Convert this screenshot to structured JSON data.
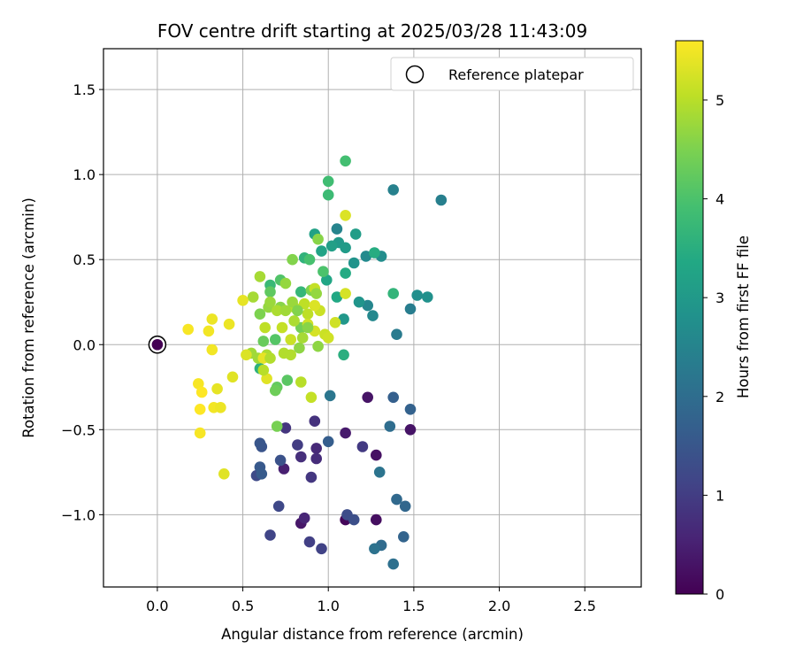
{
  "chart_data": {
    "type": "scatter",
    "title": "FOV centre drift starting at 2025/03/28 11:43:09",
    "xlabel": "Angular distance from reference (arcmin)",
    "ylabel": "Rotation from reference (arcmin)",
    "xlim": [
      -0.315,
      2.83
    ],
    "ylim": [
      -1.425,
      1.74
    ],
    "xticks": [
      0.0,
      0.5,
      1.0,
      1.5,
      2.0,
      2.5
    ],
    "xtick_labels": [
      "0.0",
      "0.5",
      "1.0",
      "1.5",
      "2.0",
      "2.5"
    ],
    "yticks": [
      -1.0,
      -0.5,
      0.0,
      0.5,
      1.0,
      1.5
    ],
    "ytick_labels": [
      "−1.0",
      "−0.5",
      "0.0",
      "0.5",
      "1.0",
      "1.5"
    ],
    "grid": true,
    "legend": {
      "position": "top-right",
      "entries": [
        "Reference platepar"
      ]
    },
    "reference_point": {
      "x": 0.0,
      "y": 0.0
    },
    "colorbar": {
      "label": "Hours from first FF file",
      "colormap": "viridis",
      "range": [
        0,
        5.6
      ],
      "ticks": [
        0,
        1,
        2,
        3,
        4,
        5
      ],
      "tick_labels": [
        "0",
        "1",
        "2",
        "3",
        "4",
        "5"
      ]
    },
    "series": [
      {
        "points": [
          [
            1.23,
            -0.31,
            0.3
          ],
          [
            1.1,
            -1.03,
            0.1
          ],
          [
            1.28,
            -1.03,
            0.2
          ],
          [
            1.28,
            -0.65,
            0.25
          ],
          [
            1.48,
            -0.5,
            0.3
          ],
          [
            0.84,
            -1.05,
            0.35
          ],
          [
            1.1,
            -0.52,
            0.4
          ],
          [
            0.74,
            -0.73,
            0.5
          ],
          [
            0.86,
            -1.02,
            0.6
          ],
          [
            0.93,
            -0.61,
            0.65
          ],
          [
            0.93,
            -0.67,
            0.7
          ],
          [
            0.84,
            -0.66,
            0.75
          ],
          [
            0.92,
            -0.45,
            0.8
          ],
          [
            0.75,
            -0.49,
            0.85
          ],
          [
            0.9,
            -0.78,
            0.9
          ],
          [
            1.2,
            -0.6,
            0.95
          ],
          [
            0.82,
            -0.59,
            1.0
          ],
          [
            0.89,
            -1.16,
            1.05
          ],
          [
            0.96,
            -1.2,
            1.1
          ],
          [
            0.66,
            -1.12,
            1.15
          ],
          [
            0.71,
            -0.95,
            1.2
          ],
          [
            0.58,
            -0.77,
            1.25
          ],
          [
            1.11,
            -1.0,
            1.3
          ],
          [
            1.15,
            -1.03,
            1.35
          ],
          [
            0.72,
            -0.68,
            1.4
          ],
          [
            0.61,
            -0.6,
            1.45
          ],
          [
            0.6,
            -0.58,
            1.5
          ],
          [
            0.6,
            -0.72,
            1.55
          ],
          [
            0.61,
            -0.76,
            1.6
          ],
          [
            1.0,
            -0.57,
            1.65
          ],
          [
            1.38,
            -0.31,
            1.7
          ],
          [
            1.48,
            -0.38,
            1.75
          ],
          [
            1.44,
            -1.13,
            1.8
          ],
          [
            1.45,
            -0.95,
            1.85
          ],
          [
            1.4,
            -0.91,
            1.9
          ],
          [
            1.31,
            -1.18,
            1.95
          ],
          [
            1.36,
            -0.48,
            2.0
          ],
          [
            1.38,
            -1.29,
            2.05
          ],
          [
            1.27,
            -1.2,
            2.1
          ],
          [
            1.3,
            -0.75,
            2.15
          ],
          [
            1.01,
            -0.3,
            2.2
          ],
          [
            1.4,
            0.06,
            2.3
          ],
          [
            1.48,
            0.21,
            2.35
          ],
          [
            1.66,
            0.85,
            2.4
          ],
          [
            1.38,
            0.91,
            2.45
          ],
          [
            1.05,
            0.68,
            2.5
          ],
          [
            1.23,
            0.23,
            2.55
          ],
          [
            1.26,
            0.17,
            2.6
          ],
          [
            1.22,
            0.52,
            2.65
          ],
          [
            1.31,
            0.52,
            2.7
          ],
          [
            1.52,
            0.29,
            2.75
          ],
          [
            1.58,
            0.28,
            2.8
          ],
          [
            1.15,
            0.48,
            2.85
          ],
          [
            1.18,
            0.25,
            2.9
          ],
          [
            1.09,
            0.15,
            2.95
          ],
          [
            1.06,
            0.6,
            3.0
          ],
          [
            1.1,
            0.57,
            3.05
          ],
          [
            1.16,
            0.65,
            3.1
          ],
          [
            1.02,
            0.58,
            3.15
          ],
          [
            0.92,
            0.65,
            3.2
          ],
          [
            0.96,
            0.55,
            3.25
          ],
          [
            0.99,
            0.38,
            3.3
          ],
          [
            1.05,
            0.28,
            3.35
          ],
          [
            1.1,
            0.42,
            3.4
          ],
          [
            1.27,
            0.54,
            3.45
          ],
          [
            1.09,
            -0.06,
            3.5
          ],
          [
            0.6,
            -0.14,
            3.55
          ],
          [
            0.86,
            0.51,
            3.6
          ],
          [
            1.38,
            0.3,
            3.65
          ],
          [
            0.84,
            0.31,
            3.7
          ],
          [
            0.66,
            0.35,
            3.75
          ],
          [
            1.0,
            0.88,
            3.8
          ],
          [
            1.0,
            0.96,
            3.85
          ],
          [
            1.1,
            1.08,
            3.9
          ],
          [
            0.89,
            0.5,
            3.95
          ],
          [
            0.97,
            0.43,
            4.0
          ],
          [
            0.72,
            0.38,
            4.05
          ],
          [
            0.69,
            0.03,
            4.1
          ],
          [
            0.76,
            -0.21,
            4.15
          ],
          [
            0.66,
            0.31,
            4.2
          ],
          [
            0.7,
            -0.25,
            4.25
          ],
          [
            0.62,
            0.02,
            4.3
          ],
          [
            0.69,
            -0.27,
            4.35
          ],
          [
            0.84,
            0.1,
            4.4
          ],
          [
            0.7,
            -0.48,
            4.45
          ],
          [
            0.9,
            0.32,
            4.5
          ],
          [
            0.6,
            0.18,
            4.5
          ],
          [
            0.79,
            0.5,
            4.55
          ],
          [
            0.94,
            0.62,
            4.6
          ],
          [
            0.72,
            0.22,
            4.6
          ],
          [
            0.83,
            -0.02,
            4.65
          ],
          [
            0.65,
            0.22,
            4.7
          ],
          [
            0.75,
            0.36,
            4.7
          ],
          [
            0.66,
            0.25,
            4.75
          ],
          [
            0.55,
            -0.05,
            4.8
          ],
          [
            0.59,
            -0.08,
            4.8
          ],
          [
            0.56,
            0.28,
            4.85
          ],
          [
            0.6,
            0.4,
            4.85
          ],
          [
            0.64,
            -0.06,
            4.9
          ],
          [
            0.7,
            0.2,
            4.9
          ],
          [
            0.74,
            -0.05,
            4.95
          ],
          [
            0.78,
            -0.06,
            4.95
          ],
          [
            0.8,
            0.22,
            5.0
          ],
          [
            0.84,
            -0.22,
            5.0
          ],
          [
            0.86,
            0.24,
            5.05
          ],
          [
            0.88,
            0.18,
            5.05
          ],
          [
            0.9,
            -0.31,
            5.1
          ],
          [
            0.92,
            0.33,
            5.1
          ],
          [
            0.95,
            0.2,
            5.15
          ],
          [
            0.98,
            0.06,
            5.15
          ],
          [
            1.0,
            0.04,
            5.2
          ],
          [
            1.04,
            0.13,
            5.2
          ],
          [
            1.1,
            0.3,
            5.25
          ],
          [
            1.1,
            0.76,
            5.3
          ],
          [
            0.52,
            -0.06,
            5.3
          ],
          [
            0.44,
            -0.19,
            5.35
          ],
          [
            0.64,
            -0.2,
            5.35
          ],
          [
            0.62,
            -0.08,
            5.4
          ],
          [
            0.5,
            0.26,
            5.4
          ],
          [
            0.42,
            0.12,
            5.45
          ],
          [
            0.32,
            0.15,
            5.45
          ],
          [
            0.3,
            0.08,
            5.5
          ],
          [
            0.32,
            -0.03,
            5.5
          ],
          [
            0.18,
            0.09,
            5.55
          ],
          [
            0.24,
            -0.23,
            5.55
          ],
          [
            0.26,
            -0.28,
            5.6
          ],
          [
            0.25,
            -0.38,
            5.6
          ],
          [
            0.25,
            -0.52,
            5.55
          ],
          [
            0.33,
            -0.37,
            5.5
          ],
          [
            0.37,
            -0.37,
            5.45
          ],
          [
            0.35,
            -0.26,
            5.4
          ],
          [
            0.39,
            -0.76,
            5.35
          ],
          [
            0.92,
            0.23,
            5.3
          ],
          [
            0.92,
            0.08,
            5.25
          ],
          [
            0.88,
            0.12,
            5.2
          ],
          [
            0.78,
            0.03,
            5.15
          ],
          [
            0.73,
            0.1,
            5.1
          ],
          [
            0.63,
            0.1,
            5.05
          ],
          [
            0.62,
            -0.15,
            5.0
          ],
          [
            0.66,
            -0.08,
            4.95
          ],
          [
            0.8,
            0.14,
            4.9
          ],
          [
            0.85,
            0.04,
            4.85
          ],
          [
            0.75,
            0.2,
            4.8
          ],
          [
            0.79,
            0.25,
            4.75
          ],
          [
            0.93,
            0.3,
            4.7
          ],
          [
            0.94,
            -0.01,
            4.65
          ],
          [
            0.88,
            0.1,
            4.6
          ],
          [
            0.82,
            0.2,
            4.55
          ]
        ]
      }
    ]
  }
}
